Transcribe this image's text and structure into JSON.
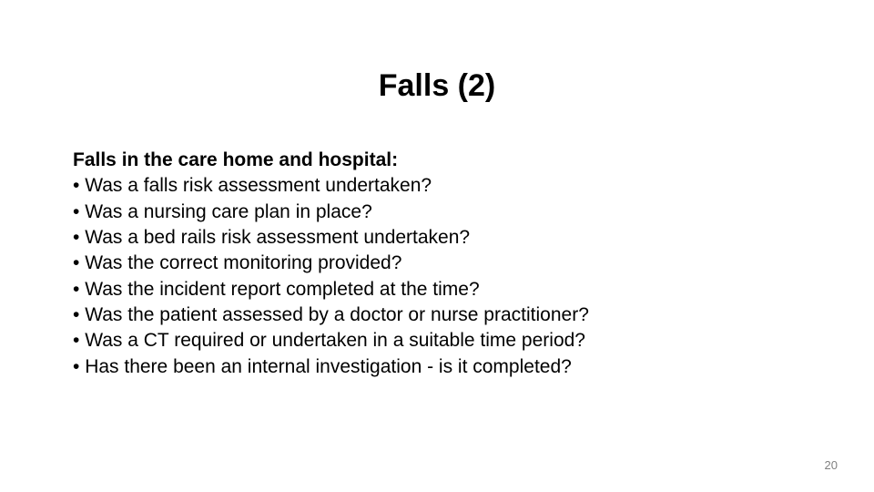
{
  "slide": {
    "title": "Falls (2)",
    "section_heading": "Falls in the care home and hospital:",
    "bullets": [
      "Was a falls risk assessment undertaken?",
      "Was a nursing care plan in place?",
      "Was a bed rails risk assessment undertaken?",
      "Was the correct monitoring provided?",
      "Was the incident report completed at the time?",
      "Was the patient assessed by a doctor or nurse practitioner?",
      "Was a CT required or undertaken in a suitable time period?",
      "Has there been an internal investigation  - is it completed?"
    ],
    "page_number": "20"
  },
  "styles": {
    "background_color": "#ffffff",
    "text_color": "#000000",
    "page_number_color": "#808080",
    "title_fontsize": 34,
    "body_fontsize": 21,
    "page_number_fontsize": 13
  }
}
